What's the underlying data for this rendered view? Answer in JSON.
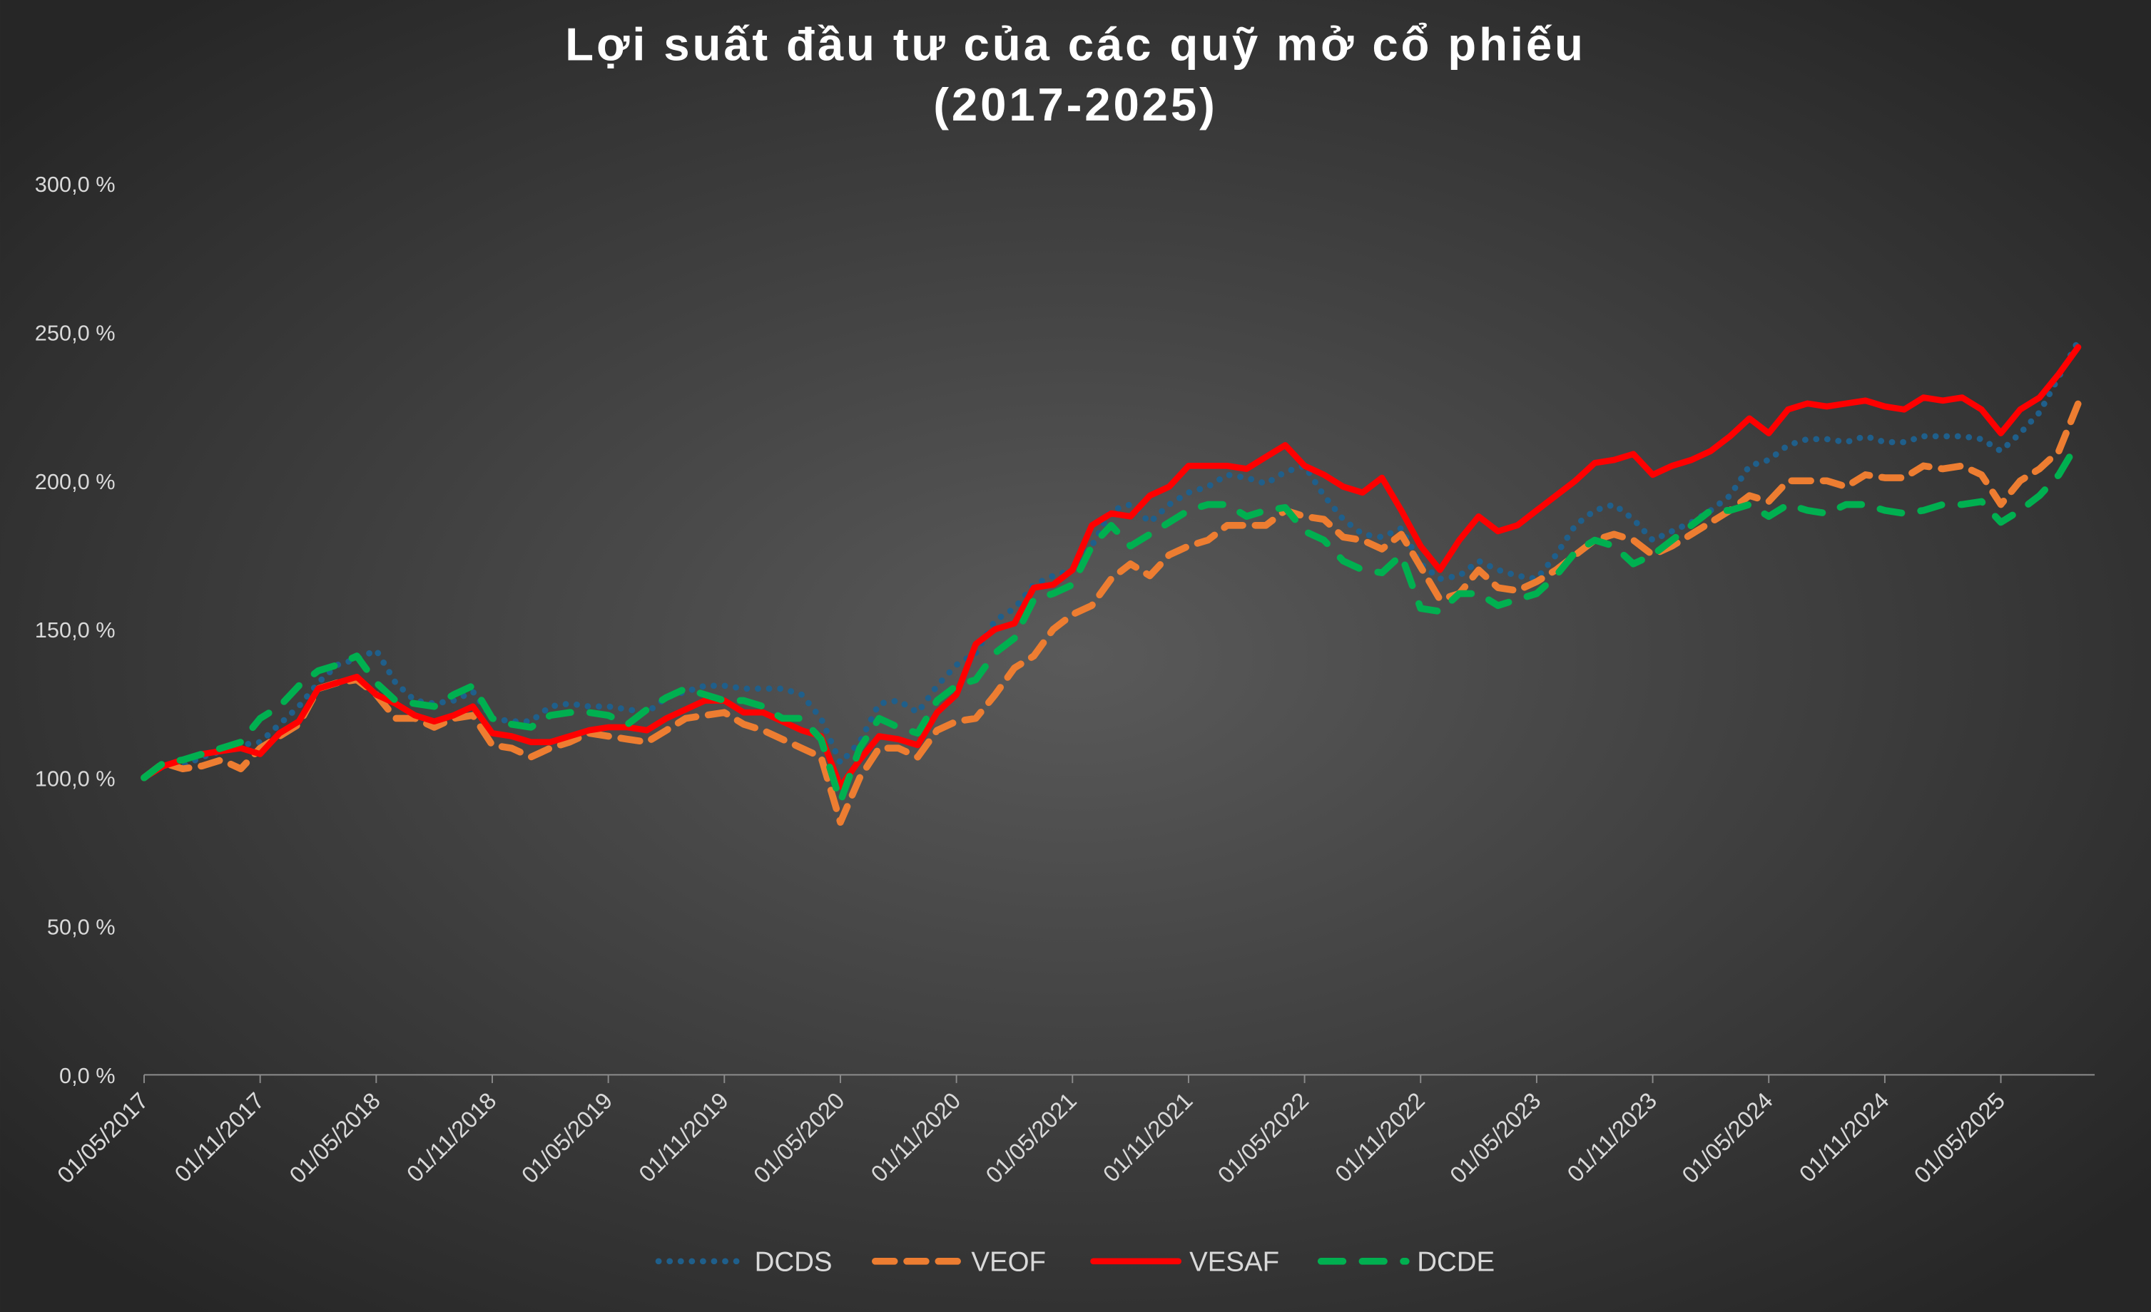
{
  "chart_data": {
    "type": "line",
    "title": "Lợi suất đầu tư của các quỹ mở cổ phiếu",
    "subtitle": "(2017-2025)",
    "categories": [
      "01/05/2017",
      null,
      null,
      null,
      null,
      null,
      "01/11/2017",
      null,
      null,
      null,
      null,
      null,
      "01/05/2018",
      null,
      null,
      null,
      null,
      null,
      "01/11/2018",
      null,
      null,
      null,
      null,
      null,
      "01/05/2019",
      null,
      null,
      null,
      null,
      null,
      "01/11/2019",
      null,
      null,
      null,
      null,
      null,
      "01/05/2020",
      null,
      null,
      null,
      null,
      null,
      "01/11/2020",
      null,
      null,
      null,
      null,
      null,
      "01/05/2021",
      null,
      null,
      null,
      null,
      null,
      "01/11/2021",
      null,
      null,
      null,
      null,
      null,
      "01/05/2022",
      null,
      null,
      null,
      null,
      null,
      "01/11/2022",
      null,
      null,
      null,
      null,
      null,
      "01/05/2023",
      null,
      null,
      null,
      null,
      null,
      "01/11/2023",
      null,
      null,
      null,
      null,
      null,
      "01/05/2024",
      null,
      null,
      null,
      null,
      null,
      "01/11/2024",
      null,
      null,
      null,
      null,
      null,
      "01/05/2025",
      null,
      null,
      null,
      null
    ],
    "ylim": [
      0,
      300
    ],
    "yticks": [
      {
        "value": 0,
        "label": "0,0 %"
      },
      {
        "value": 50,
        "label": "50,0 %"
      },
      {
        "value": 100,
        "label": "100,0 %"
      },
      {
        "value": 150,
        "label": "150,0 %"
      },
      {
        "value": 200,
        "label": "200,0 %"
      },
      {
        "value": 250,
        "label": "250,0 %"
      },
      {
        "value": 300,
        "label": "300,0 %"
      }
    ],
    "grid": false,
    "legend": "bottom",
    "series": [
      {
        "name": "DCDS",
        "color": "#1f5f8b",
        "style": "dotted",
        "values": [
          100,
          104,
          104,
          107,
          109,
          111,
          112,
          118,
          124,
          132,
          138,
          140,
          143,
          132,
          126,
          125,
          126,
          129,
          120,
          119,
          119,
          124,
          125,
          124,
          124,
          123,
          122,
          127,
          129,
          131,
          131,
          130,
          130,
          130,
          128,
          120,
          105,
          112,
          125,
          126,
          122,
          131,
          138,
          142,
          153,
          157,
          165,
          168,
          170,
          178,
          190,
          192,
          186,
          192,
          196,
          198,
          202,
          201,
          199,
          203,
          205,
          195,
          187,
          182,
          181,
          184,
          172,
          167,
          168,
          173,
          170,
          168,
          167,
          175,
          185,
          190,
          192,
          187,
          180,
          183,
          186,
          190,
          195,
          205,
          207,
          212,
          214,
          214,
          213,
          215,
          213,
          213,
          215,
          215,
          215,
          214,
          210,
          216,
          223,
          235,
          247
        ]
      },
      {
        "name": "VEOF",
        "color": "#ed7d31",
        "style": "dashed",
        "values": [
          100,
          105,
          103,
          104,
          106,
          103,
          110,
          114,
          118,
          130,
          132,
          133,
          128,
          120,
          120,
          117,
          120,
          121,
          111,
          110,
          107,
          110,
          112,
          115,
          114,
          113,
          112,
          116,
          120,
          121,
          122,
          118,
          116,
          113,
          110,
          107,
          85,
          100,
          110,
          110,
          107,
          116,
          119,
          120,
          128,
          137,
          141,
          150,
          155,
          158,
          167,
          172,
          168,
          175,
          178,
          180,
          185,
          185,
          185,
          190,
          188,
          187,
          181,
          180,
          177,
          182,
          171,
          160,
          162,
          170,
          164,
          163,
          166,
          170,
          175,
          180,
          182,
          180,
          175,
          178,
          182,
          186,
          190,
          195,
          193,
          200,
          200,
          200,
          198,
          202,
          201,
          201,
          205,
          204,
          205,
          202,
          192,
          200,
          204,
          210,
          226
        ]
      },
      {
        "name": "VESAF",
        "color": "#ff0000",
        "style": "solid",
        "values": [
          100,
          104,
          106,
          108,
          109,
          110,
          108,
          115,
          119,
          130,
          132,
          134,
          128,
          125,
          121,
          119,
          121,
          124,
          115,
          114,
          112,
          112,
          114,
          116,
          117,
          117,
          116,
          120,
          123,
          126,
          126,
          122,
          122,
          119,
          116,
          114,
          97,
          106,
          114,
          113,
          111,
          122,
          128,
          145,
          150,
          152,
          164,
          165,
          170,
          185,
          189,
          188,
          195,
          198,
          205,
          205,
          205,
          204,
          208,
          212,
          205,
          202,
          198,
          196,
          201,
          190,
          178,
          170,
          180,
          188,
          183,
          185,
          190,
          195,
          200,
          206,
          207,
          209,
          202,
          205,
          207,
          210,
          215,
          221,
          216,
          224,
          226,
          225,
          226,
          227,
          225,
          224,
          228,
          227,
          228,
          224,
          216,
          224,
          228,
          236,
          245
        ]
      },
      {
        "name": "DCDE",
        "color": "#00b050",
        "style": "longdash",
        "values": [
          100,
          105,
          106,
          108,
          110,
          112,
          120,
          124,
          131,
          136,
          138,
          141,
          132,
          126,
          125,
          124,
          128,
          131,
          120,
          118,
          117,
          121,
          122,
          122,
          121,
          118,
          123,
          127,
          130,
          128,
          126,
          126,
          124,
          120,
          120,
          113,
          92,
          110,
          120,
          117,
          115,
          126,
          131,
          133,
          142,
          147,
          160,
          162,
          165,
          178,
          185,
          178,
          182,
          186,
          190,
          192,
          192,
          188,
          190,
          191,
          183,
          180,
          173,
          170,
          169,
          175,
          157,
          156,
          162,
          162,
          158,
          160,
          162,
          168,
          176,
          180,
          178,
          172,
          175,
          180,
          185,
          190,
          190,
          192,
          188,
          192,
          190,
          189,
          192,
          192,
          190,
          189,
          190,
          192,
          192,
          193,
          186,
          190,
          195,
          202,
          213
        ]
      }
    ]
  }
}
